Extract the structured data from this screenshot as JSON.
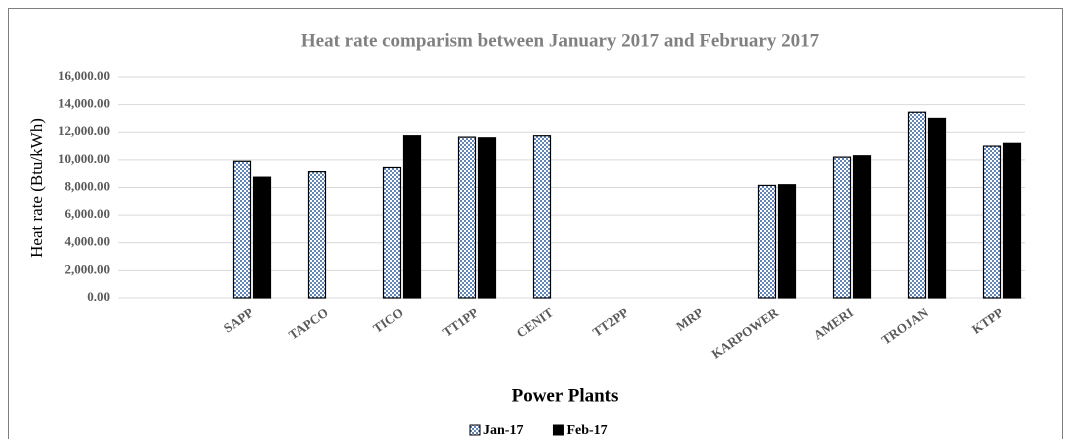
{
  "chart_data": {
    "type": "bar",
    "title": "Heat rate comparism between January 2017 and February 2017",
    "y_label": "Heat rate (Btu/kWh)",
    "x_label": "Power Plants",
    "categories": [
      "SAPP",
      "TAPCO",
      "TICO",
      "TT1PP",
      "CENIT",
      "TT2PP",
      "MRP",
      "KARPOWER",
      "AMERI",
      "TROJAN",
      "KTPP"
    ],
    "series": [
      {
        "name": "Jan-17",
        "color": "#2e5e9e",
        "pattern": "dots",
        "values": [
          9900,
          9150,
          9450,
          11650,
          11750,
          null,
          null,
          8150,
          10200,
          13450,
          11000
        ]
      },
      {
        "name": "Feb-17",
        "color": "#000000",
        "values": [
          8750,
          null,
          11750,
          11600,
          null,
          null,
          null,
          8200,
          10300,
          13000,
          11200
        ]
      }
    ],
    "ylim": [
      0,
      16000
    ],
    "yticks": [
      {
        "value": 0,
        "label": "0.00"
      },
      {
        "value": 2000,
        "label": "2,000.00"
      },
      {
        "value": 4000,
        "label": "4,000.00"
      },
      {
        "value": 6000,
        "label": "6,000.00"
      },
      {
        "value": 8000,
        "label": "8,000.00"
      },
      {
        "value": 10000,
        "label": "10,000.00"
      },
      {
        "value": 12000,
        "label": "12,000.00"
      },
      {
        "value": 14000,
        "label": "14,000.00"
      },
      {
        "value": 16000,
        "label": "16,000.00"
      }
    ],
    "grid": true,
    "legend": "bottom"
  }
}
